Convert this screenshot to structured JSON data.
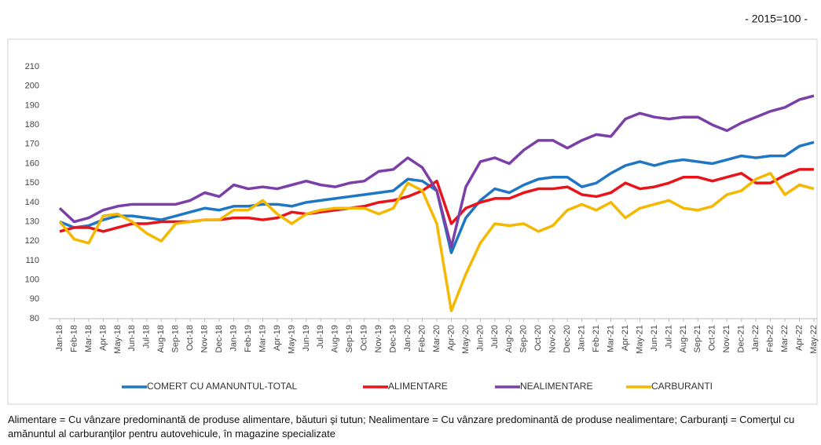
{
  "chart_data": {
    "type": "line",
    "note": "- 2015=100 -",
    "categories": [
      "Jan-18",
      "Feb-18",
      "Mar-18",
      "Apr-18",
      "May-18",
      "Jun-18",
      "Jul-18",
      "Aug-18",
      "Sep-18",
      "Oct-18",
      "Nov-18",
      "Dec-18",
      "Jan-19",
      "Feb-19",
      "Mar-19",
      "Apr-19",
      "May-19",
      "Jun-19",
      "Jul-19",
      "Aug-19",
      "Sep-19",
      "Oct-19",
      "Nov-19",
      "Dec-19",
      "Jan-20",
      "Feb-20",
      "Mar-20",
      "Apr-20",
      "May-20",
      "Jun-20",
      "Jul-20",
      "Aug-20",
      "Sep-20",
      "Oct-20",
      "Nov-20",
      "Dec-20",
      "Jan-21",
      "Feb-21",
      "Mar-21",
      "Apr-21",
      "May-21",
      "Jun-21",
      "Jul-21",
      "Aug-21",
      "Sep-21",
      "Oct-21",
      "Nov-21",
      "Dec-21",
      "Jan-22",
      "Feb-22",
      "Mar-22",
      "Apr-22",
      "May-22"
    ],
    "series": [
      {
        "name": "COMERT CU AMANUNTUL-TOTAL",
        "color": "#1f77c4",
        "values": [
          130,
          127,
          128,
          131,
          133,
          133,
          132,
          131,
          133,
          135,
          137,
          136,
          138,
          138,
          139,
          139,
          138,
          140,
          141,
          142,
          143,
          144,
          145,
          146,
          152,
          151,
          146,
          114,
          132,
          141,
          147,
          145,
          149,
          152,
          153,
          153,
          148,
          150,
          155,
          159,
          161,
          159,
          161,
          162,
          161,
          160,
          162,
          164,
          163,
          164,
          164,
          169,
          171
        ]
      },
      {
        "name": "ALIMENTARE",
        "color": "#e8141a",
        "values": [
          125,
          127,
          127,
          125,
          127,
          129,
          129,
          130,
          130,
          130,
          131,
          131,
          132,
          132,
          131,
          132,
          135,
          134,
          135,
          136,
          137,
          138,
          140,
          141,
          143,
          146,
          151,
          129,
          137,
          140,
          142,
          142,
          145,
          147,
          147,
          148,
          144,
          143,
          145,
          150,
          147,
          148,
          150,
          153,
          153,
          151,
          153,
          155,
          150,
          150,
          154,
          157,
          157
        ]
      },
      {
        "name": "NEALIMENTARE",
        "color": "#7b3fa8",
        "values": [
          137,
          130,
          132,
          136,
          138,
          139,
          139,
          139,
          139,
          141,
          145,
          143,
          149,
          147,
          148,
          147,
          149,
          151,
          149,
          148,
          150,
          151,
          156,
          157,
          163,
          158,
          146,
          117,
          148,
          161,
          163,
          160,
          167,
          172,
          172,
          168,
          172,
          175,
          174,
          183,
          186,
          184,
          183,
          184,
          184,
          180,
          177,
          181,
          184,
          187,
          189,
          193,
          195
        ]
      },
      {
        "name": "CARBURANTI",
        "color": "#f5b800",
        "values": [
          130,
          121,
          119,
          133,
          134,
          130,
          124,
          120,
          129,
          130,
          131,
          131,
          136,
          136,
          141,
          134,
          129,
          134,
          136,
          137,
          137,
          137,
          134,
          137,
          150,
          146,
          129,
          84,
          103,
          119,
          129,
          128,
          129,
          125,
          128,
          136,
          139,
          136,
          140,
          132,
          137,
          139,
          141,
          137,
          136,
          138,
          144,
          146,
          152,
          155,
          144,
          149,
          147
        ]
      }
    ],
    "ylim": [
      80,
      210
    ],
    "yticks": [
      80,
      90,
      100,
      110,
      120,
      130,
      140,
      150,
      160,
      170,
      180,
      190,
      200,
      210
    ],
    "grid": false,
    "footnote": "Alimentare = Cu vânzare predominantă de produse alimentare, băuturi şi tutun; Nealimentare = Cu vânzare predominantă de produse nealimentare; Carburanţi = Comerţul cu amănuntul al carburanţilor pentru autovehicule, în magazine specializate"
  }
}
